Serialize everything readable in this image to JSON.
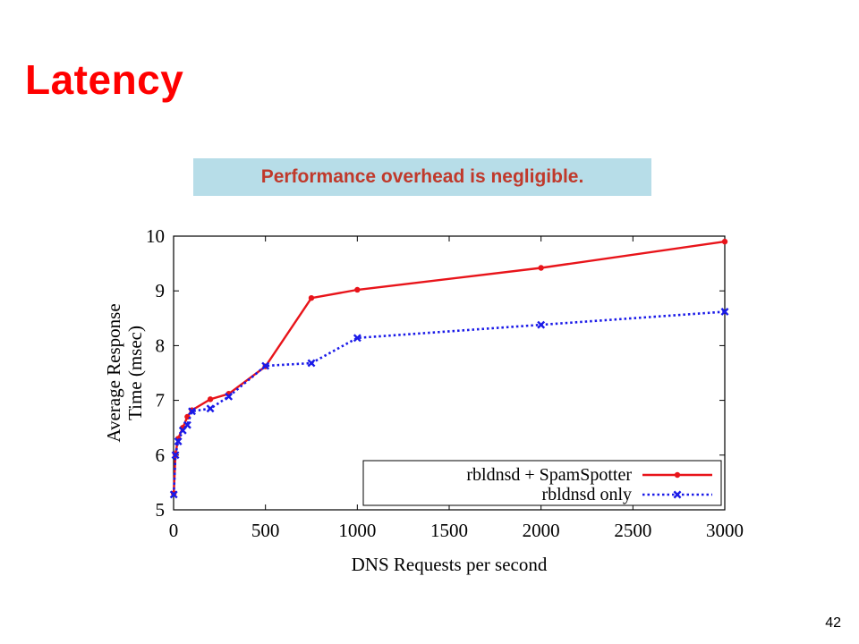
{
  "slide": {
    "title": "Latency",
    "callout": "Performance overhead is negligible.",
    "page_number": "42"
  },
  "chart_data": {
    "type": "line",
    "title": "",
    "xlabel": "DNS Requests per second",
    "ylabel_lines": [
      "Average Response",
      "Time (msec)"
    ],
    "xlim": [
      0,
      3000
    ],
    "ylim": [
      5,
      10
    ],
    "xticks": [
      0,
      500,
      1000,
      1500,
      2000,
      2500,
      3000
    ],
    "yticks": [
      5,
      6,
      7,
      8,
      9,
      10
    ],
    "grid": false,
    "legend_position": "bottom-right",
    "series": [
      {
        "name": "rbldnsd + SpamSpotter",
        "color": "#e8141a",
        "line_style": "solid",
        "marker": "dot",
        "x": [
          1,
          10,
          25,
          50,
          75,
          100,
          200,
          300,
          500,
          750,
          1000,
          2000,
          3000
        ],
        "y": [
          5.3,
          6.02,
          6.3,
          6.5,
          6.7,
          6.82,
          7.02,
          7.12,
          7.62,
          8.87,
          9.02,
          9.42,
          9.9
        ]
      },
      {
        "name": "rbldnsd only",
        "color": "#1a1ae8",
        "line_style": "dotted",
        "marker": "x",
        "x": [
          1,
          10,
          25,
          50,
          75,
          100,
          200,
          300,
          500,
          750,
          1000,
          2000,
          3000
        ],
        "y": [
          5.28,
          6.0,
          6.25,
          6.45,
          6.55,
          6.8,
          6.85,
          7.07,
          7.63,
          7.68,
          8.14,
          8.38,
          8.62
        ]
      }
    ]
  }
}
